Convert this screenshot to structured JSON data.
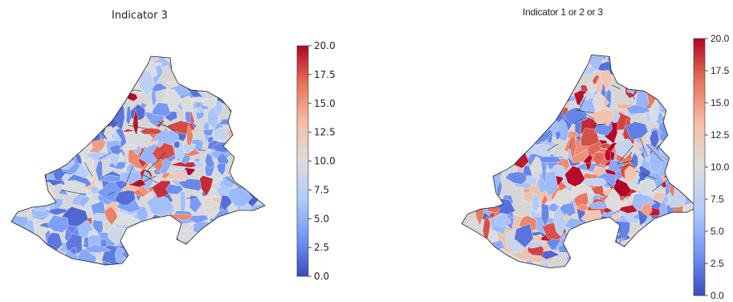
{
  "panels": [
    {
      "title": "Indicator 3",
      "colorbar": {
        "min": 0.0,
        "max": 20.0,
        "ticks": [
          "0.0",
          "2.5",
          "5.0",
          "7.5",
          "10.0",
          "12.5",
          "15.0",
          "17.5",
          "20.0"
        ]
      }
    },
    {
      "title": "Indicator 1 or 2 or 3",
      "colorbar": {
        "min": 0.0,
        "max": 20.0,
        "ticks": [
          "0.0",
          "2.5",
          "5.0",
          "7.5",
          "10.0",
          "12.5",
          "15.0",
          "17.5",
          "20.0"
        ]
      }
    }
  ],
  "colormap": "coolwarm",
  "colormap_stops": [
    "#3b4cc0",
    "#7396f5",
    "#b0cbfc",
    "#dddddd",
    "#f6bfa6",
    "#e7755b",
    "#b40426"
  ]
}
